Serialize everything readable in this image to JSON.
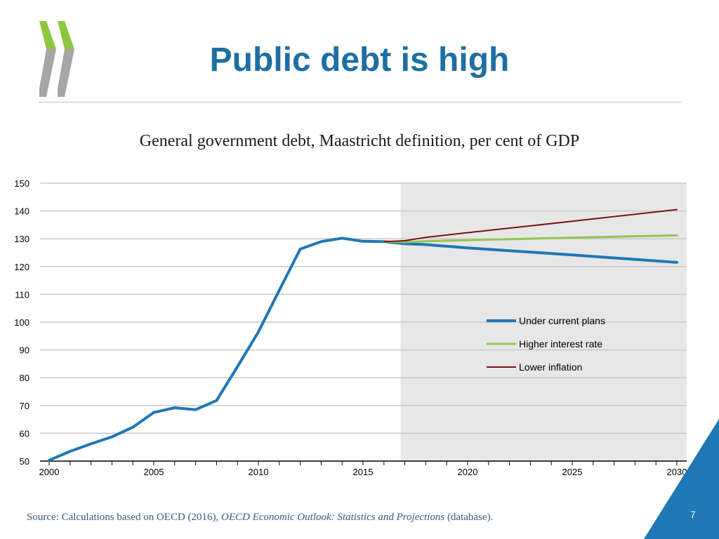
{
  "header": {
    "title": "Public debt is high",
    "logo_name": "oecd-chevron-logo"
  },
  "chart_data": {
    "type": "line",
    "title": "General government debt, Maastricht definition, per cent of GDP",
    "xlim": [
      2000,
      2030
    ],
    "ylim": [
      50,
      150
    ],
    "x_ticks": [
      2000,
      2005,
      2010,
      2015,
      2020,
      2025,
      2030
    ],
    "y_ticks": [
      50,
      60,
      70,
      80,
      90,
      100,
      110,
      120,
      130,
      140,
      150
    ],
    "grid": "horizontal",
    "projection_shading_start": 2016.8,
    "legend_position": "right-middle",
    "series": [
      {
        "name": "Under current plans",
        "color": "#1f77b4",
        "points": [
          [
            2000,
            50.3
          ],
          [
            2001,
            53.5
          ],
          [
            2002,
            56.2
          ],
          [
            2003,
            58.7
          ],
          [
            2004,
            62.2
          ],
          [
            2005,
            67.5
          ],
          [
            2006,
            69.2
          ],
          [
            2007,
            68.5
          ],
          [
            2008,
            71.8
          ],
          [
            2009,
            84.0
          ],
          [
            2010,
            96.5
          ],
          [
            2011,
            111.5
          ],
          [
            2012,
            126.3
          ],
          [
            2013,
            129.0
          ],
          [
            2014,
            130.2
          ],
          [
            2015,
            129.1
          ],
          [
            2016,
            129.0
          ],
          [
            2017,
            128.2
          ],
          [
            2018,
            127.9
          ],
          [
            2020,
            126.7
          ],
          [
            2025,
            124.2
          ],
          [
            2030,
            121.5
          ]
        ]
      },
      {
        "name": "Higher interest rate",
        "color": "#92c750",
        "points": [
          [
            2016,
            129.0
          ],
          [
            2017,
            128.8
          ],
          [
            2018,
            129.1
          ],
          [
            2020,
            129.5
          ],
          [
            2025,
            130.4
          ],
          [
            2030,
            131.2
          ]
        ]
      },
      {
        "name": "Lower inflation",
        "color": "#7a1212",
        "points": [
          [
            2016,
            129.0
          ],
          [
            2017,
            129.3
          ],
          [
            2018,
            130.5
          ],
          [
            2020,
            132.2
          ],
          [
            2025,
            136.3
          ],
          [
            2030,
            140.5
          ]
        ]
      }
    ]
  },
  "footer": {
    "source_prefix": "Source: Calculations based on OECD (2016), ",
    "source_italic": "OECD Economic Outlook: Statistics and Projections",
    "source_suffix": " (database).",
    "page_number": "7"
  }
}
